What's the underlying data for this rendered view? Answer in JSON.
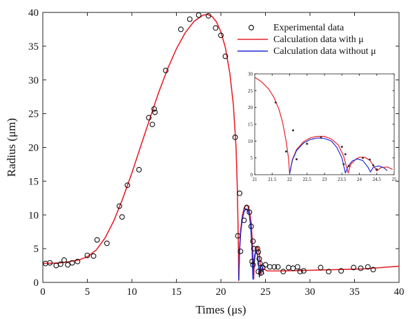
{
  "chart_data": [
    {
      "type": "scatter+line",
      "title": "",
      "xlabel": "Times (μs)",
      "ylabel": "Radius (μm)",
      "xlim": [
        0,
        40
      ],
      "ylim": [
        0,
        40
      ],
      "xticks": [
        0,
        5,
        10,
        15,
        20,
        25,
        30,
        35,
        40
      ],
      "yticks": [
        0,
        5,
        10,
        15,
        20,
        25,
        30,
        35,
        40
      ],
      "grid": false,
      "legend_position": "top-right",
      "legend": [
        {
          "label": "Experimental data",
          "marker": "circle",
          "color": "#000000"
        },
        {
          "label": "Calculation data with μ",
          "marker": "line",
          "color": "#e8202a"
        },
        {
          "label": "Calculation data without μ",
          "marker": "line",
          "color": "#1f2bd6"
        }
      ],
      "series": [
        {
          "name": "Experimental data",
          "kind": "scatter",
          "color": "#000000",
          "points": [
            [
              0.3,
              2.8
            ],
            [
              0.8,
              2.9
            ],
            [
              1.5,
              2.5
            ],
            [
              2.0,
              2.7
            ],
            [
              2.4,
              3.3
            ],
            [
              2.8,
              2.6
            ],
            [
              3.3,
              2.9
            ],
            [
              3.9,
              3.1
            ],
            [
              5.0,
              4.0
            ],
            [
              5.7,
              3.9
            ],
            [
              6.1,
              6.3
            ],
            [
              7.2,
              5.8
            ],
            [
              8.6,
              11.3
            ],
            [
              8.9,
              9.7
            ],
            [
              9.5,
              14.4
            ],
            [
              10.8,
              16.7
            ],
            [
              11.9,
              24.4
            ],
            [
              12.3,
              23.4
            ],
            [
              12.5,
              25.7
            ],
            [
              12.6,
              25.2
            ],
            [
              13.8,
              31.4
            ],
            [
              15.5,
              37.5
            ],
            [
              16.5,
              39.0
            ],
            [
              17.5,
              39.6
            ],
            [
              18.6,
              39.5
            ],
            [
              19.4,
              37.7
            ],
            [
              20.0,
              36.6
            ],
            [
              20.5,
              33.5
            ],
            [
              21.6,
              21.5
            ],
            [
              22.1,
              13.2
            ],
            [
              21.9,
              6.9
            ],
            [
              22.2,
              4.6
            ],
            [
              22.6,
              9.2
            ],
            [
              22.9,
              11.1
            ],
            [
              23.2,
              10.4
            ],
            [
              23.4,
              8.3
            ],
            [
              23.6,
              6.1
            ],
            [
              23.7,
              5.0
            ],
            [
              23.5,
              3.1
            ],
            [
              23.6,
              2.6
            ],
            [
              24.1,
              5.0
            ],
            [
              24.2,
              4.5
            ],
            [
              24.3,
              3.5
            ],
            [
              24.4,
              2.8
            ],
            [
              24.2,
              1.6
            ],
            [
              24.5,
              1.4
            ],
            [
              24.7,
              2.2
            ],
            [
              25.0,
              2.6
            ],
            [
              25.5,
              2.3
            ],
            [
              26.0,
              2.3
            ],
            [
              26.4,
              2.3
            ],
            [
              27.0,
              1.6
            ],
            [
              27.6,
              2.2
            ],
            [
              28.1,
              2.1
            ],
            [
              28.6,
              2.3
            ],
            [
              28.9,
              1.6
            ],
            [
              29.3,
              1.7
            ],
            [
              31.2,
              2.2
            ],
            [
              32.1,
              1.6
            ],
            [
              33.5,
              1.7
            ],
            [
              34.9,
              2.2
            ],
            [
              35.7,
              2.1
            ],
            [
              36.5,
              2.3
            ],
            [
              37.1,
              1.9
            ]
          ]
        },
        {
          "name": "Calculation data with μ",
          "kind": "line",
          "color": "#e8202a",
          "points": [
            [
              0,
              2.8
            ],
            [
              2,
              2.9
            ],
            [
              4,
              3.3
            ],
            [
              5,
              3.8
            ],
            [
              6,
              4.8
            ],
            [
              7,
              6.6
            ],
            [
              8,
              9.2
            ],
            [
              9,
              12.5
            ],
            [
              10,
              16.2
            ],
            [
              11,
              20.2
            ],
            [
              12,
              24.2
            ],
            [
              13,
              28.1
            ],
            [
              14,
              31.6
            ],
            [
              15,
              34.6
            ],
            [
              16,
              37.0
            ],
            [
              17,
              38.7
            ],
            [
              18,
              39.6
            ],
            [
              18.5,
              39.7
            ],
            [
              19,
              39.4
            ],
            [
              19.5,
              38.6
            ],
            [
              20,
              37.1
            ],
            [
              20.5,
              34.8
            ],
            [
              21,
              31.0
            ],
            [
              21.4,
              26.3
            ],
            [
              21.7,
              20.0
            ],
            [
              21.85,
              13.5
            ],
            [
              21.95,
              6.5
            ],
            [
              22.0,
              0.3
            ],
            [
              22.08,
              4.5
            ],
            [
              22.2,
              7.5
            ],
            [
              22.4,
              9.8
            ],
            [
              22.6,
              11.0
            ],
            [
              22.8,
              11.4
            ],
            [
              23.0,
              11.4
            ],
            [
              23.2,
              10.6
            ],
            [
              23.4,
              8.8
            ],
            [
              23.55,
              5.5
            ],
            [
              23.68,
              0.5
            ],
            [
              23.75,
              3.0
            ],
            [
              23.9,
              4.6
            ],
            [
              24.0,
              5.2
            ],
            [
              24.15,
              5.2
            ],
            [
              24.3,
              4.3
            ],
            [
              24.42,
              2.5
            ],
            [
              24.5,
              1.1
            ],
            [
              24.62,
              2.1
            ],
            [
              24.8,
              2.0
            ],
            [
              25.2,
              1.7
            ],
            [
              27,
              1.7
            ],
            [
              30,
              1.8
            ],
            [
              33,
              1.9
            ],
            [
              36,
              2.0
            ],
            [
              38,
              2.2
            ],
            [
              40,
              2.4
            ]
          ]
        },
        {
          "name": "Calculation data without μ",
          "kind": "line",
          "color": "#1f2bd6",
          "points": [
            [
              22.0,
              0.3
            ],
            [
              22.08,
              4.3
            ],
            [
              22.2,
              7.2
            ],
            [
              22.4,
              9.4
            ],
            [
              22.6,
              10.5
            ],
            [
              22.8,
              10.9
            ],
            [
              23.0,
              10.8
            ],
            [
              23.2,
              10.0
            ],
            [
              23.35,
              8.2
            ],
            [
              23.5,
              5.0
            ],
            [
              23.6,
              0.5
            ],
            [
              23.68,
              2.6
            ],
            [
              23.8,
              4.1
            ],
            [
              23.95,
              4.7
            ],
            [
              24.1,
              4.2
            ],
            [
              24.25,
              2.2
            ],
            [
              24.32,
              0.8
            ],
            [
              24.4,
              2.2
            ],
            [
              24.55,
              2.6
            ],
            [
              24.7,
              2.1
            ],
            [
              24.8,
              1.2
            ]
          ]
        }
      ]
    },
    {
      "type": "scatter+line",
      "role": "inset",
      "xlim": [
        21,
        25
      ],
      "ylim": [
        0,
        30
      ],
      "xticks": [
        21,
        21.5,
        22,
        22.5,
        23,
        23.5,
        24,
        24.5,
        25
      ],
      "yticks": [
        0,
        5,
        10,
        15,
        20,
        25,
        30
      ],
      "series": [
        {
          "name": "Experimental data",
          "kind": "scatter",
          "color": "#000000",
          "points": [
            [
              21.6,
              21.5
            ],
            [
              21.9,
              6.9
            ],
            [
              22.1,
              13.2
            ],
            [
              22.2,
              4.6
            ],
            [
              22.5,
              9.2
            ],
            [
              22.9,
              11.1
            ],
            [
              23.5,
              8.3
            ],
            [
              23.55,
              3.1
            ],
            [
              23.6,
              6.1
            ],
            [
              23.7,
              2.6
            ],
            [
              24.1,
              5.0
            ],
            [
              24.3,
              4.5
            ],
            [
              24.4,
              2.8
            ],
            [
              24.5,
              1.6
            ]
          ]
        },
        {
          "name": "Calculation data with μ",
          "kind": "line",
          "color": "#e8202a",
          "points": [
            [
              21.0,
              29.0
            ],
            [
              21.2,
              27.6
            ],
            [
              21.4,
              25.5
            ],
            [
              21.55,
              23.0
            ],
            [
              21.7,
              19.3
            ],
            [
              21.8,
              15.5
            ],
            [
              21.9,
              10.0
            ],
            [
              21.97,
              4.8
            ],
            [
              22.0,
              0.3
            ],
            [
              22.08,
              4.5
            ],
            [
              22.2,
              7.5
            ],
            [
              22.4,
              9.8
            ],
            [
              22.6,
              11.0
            ],
            [
              22.8,
              11.4
            ],
            [
              23.0,
              11.4
            ],
            [
              23.2,
              10.6
            ],
            [
              23.4,
              8.8
            ],
            [
              23.55,
              5.5
            ],
            [
              23.68,
              0.5
            ],
            [
              23.75,
              3.0
            ],
            [
              23.9,
              4.6
            ],
            [
              24.0,
              5.2
            ],
            [
              24.15,
              5.2
            ],
            [
              24.3,
              4.3
            ],
            [
              24.42,
              2.5
            ],
            [
              24.5,
              1.1
            ],
            [
              24.62,
              2.1
            ],
            [
              24.8,
              2.3
            ],
            [
              24.95,
              1.6
            ]
          ]
        },
        {
          "name": "Calculation data without μ",
          "kind": "line",
          "color": "#1f2bd6",
          "points": [
            [
              22.0,
              0.3
            ],
            [
              22.08,
              4.3
            ],
            [
              22.2,
              7.2
            ],
            [
              22.4,
              9.4
            ],
            [
              22.6,
              10.5
            ],
            [
              22.8,
              10.9
            ],
            [
              23.0,
              10.8
            ],
            [
              23.2,
              10.0
            ],
            [
              23.35,
              8.2
            ],
            [
              23.5,
              5.0
            ],
            [
              23.6,
              0.5
            ],
            [
              23.68,
              2.6
            ],
            [
              23.8,
              4.1
            ],
            [
              23.95,
              4.7
            ],
            [
              24.1,
              4.2
            ],
            [
              24.25,
              2.2
            ],
            [
              24.32,
              0.8
            ],
            [
              24.4,
              2.2
            ],
            [
              24.55,
              2.6
            ],
            [
              24.7,
              2.1
            ],
            [
              24.8,
              1.2
            ]
          ]
        }
      ]
    }
  ]
}
